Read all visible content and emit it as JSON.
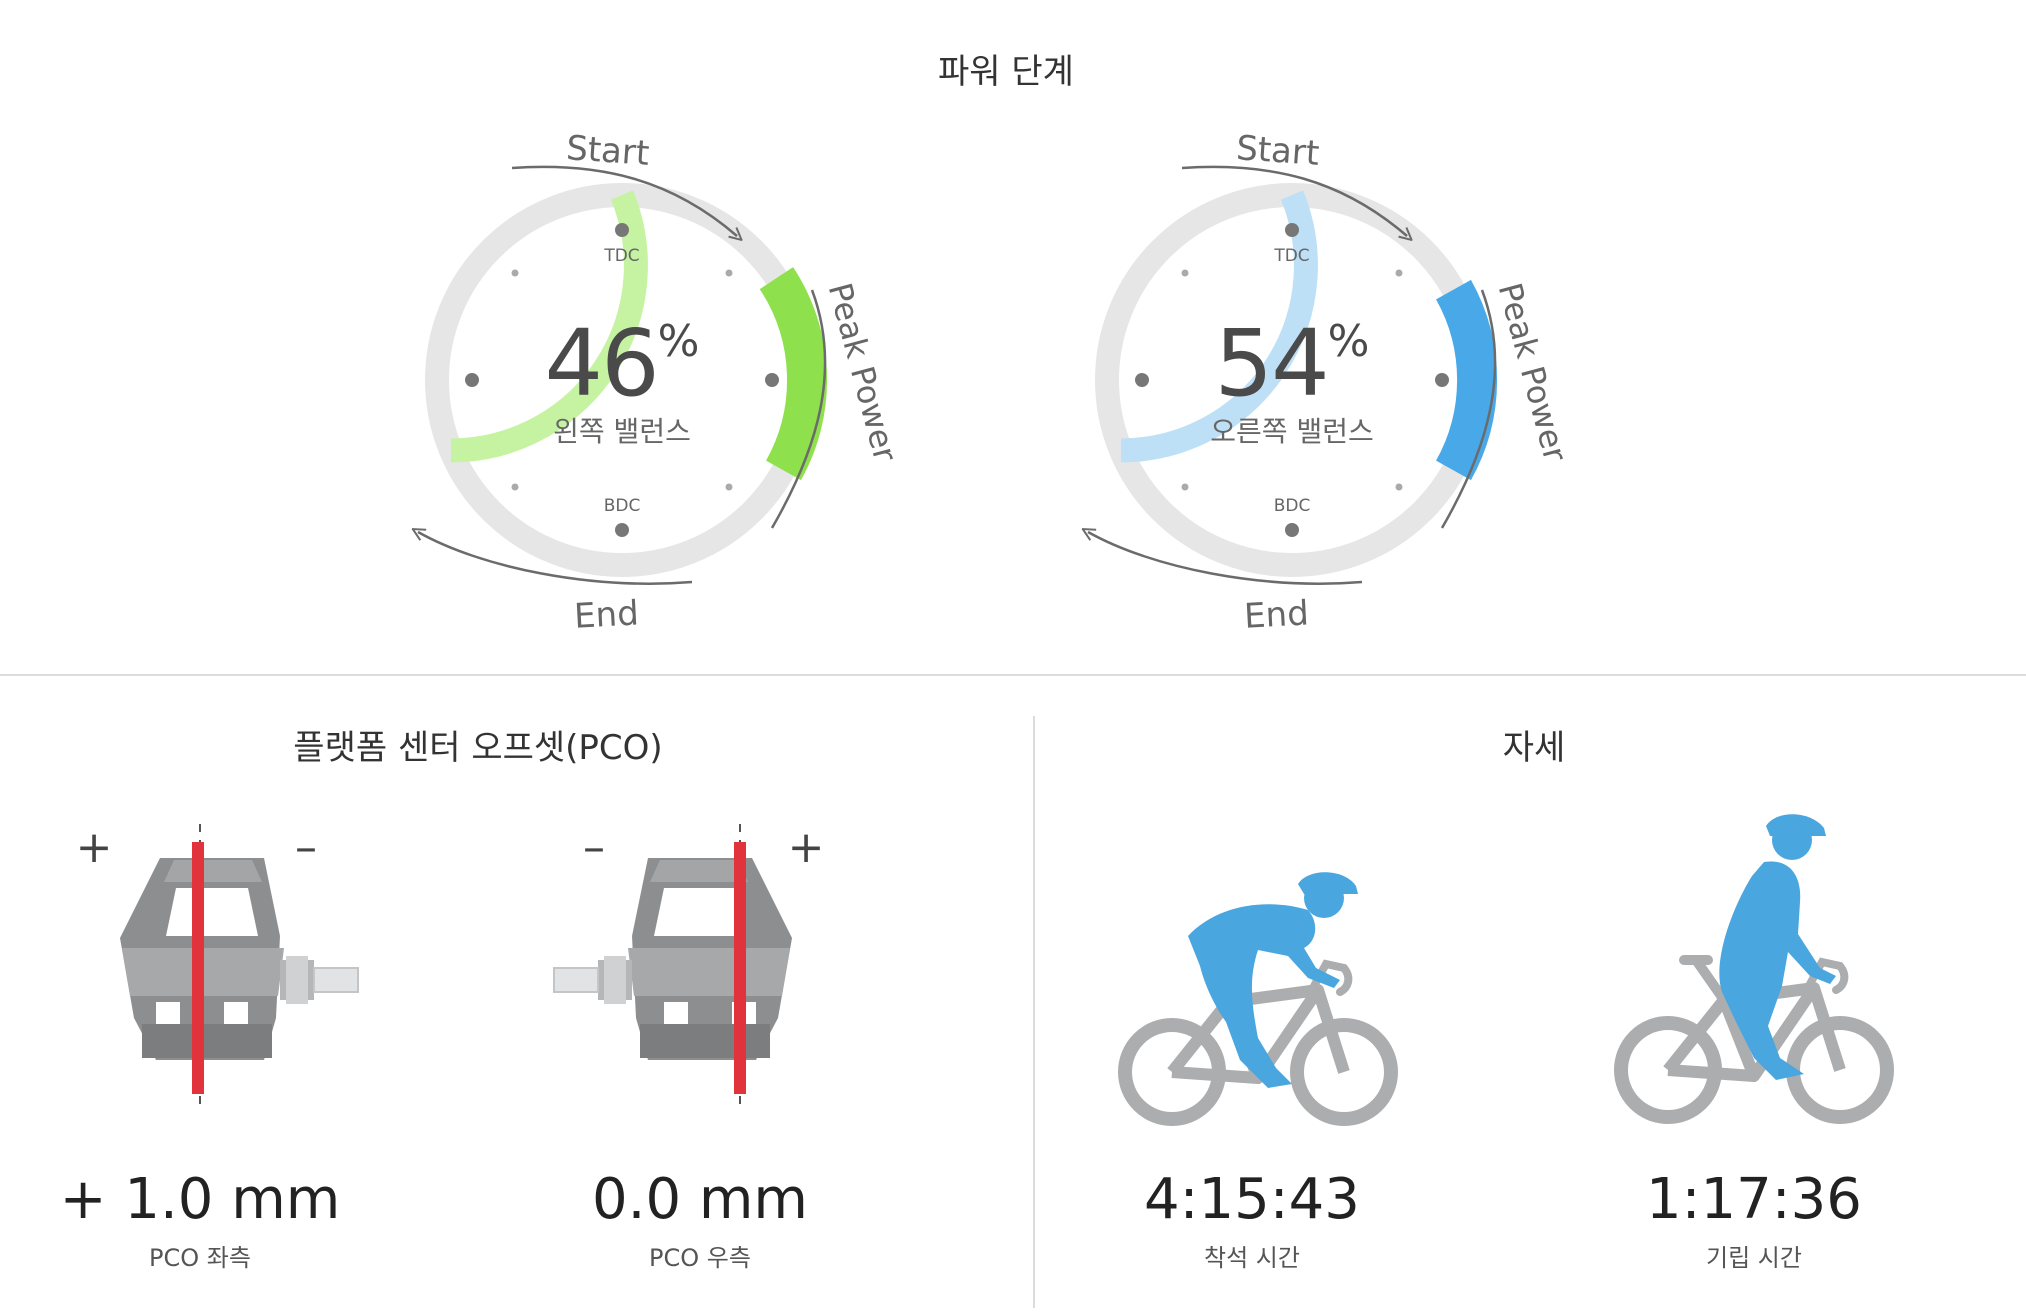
{
  "power_phase": {
    "title": "파워 단계",
    "left": {
      "percent": "46",
      "percent_sign": "%",
      "label": "왼쪽 밸런스",
      "tdc": "TDC",
      "bdc": "BDC",
      "start": "Start",
      "end": "End",
      "peak": "Peak Power",
      "colors": {
        "phase": "#c6f3a2",
        "peak": "#8ee04c"
      }
    },
    "right": {
      "percent": "54",
      "percent_sign": "%",
      "label": "오른쪽 밸런스",
      "tdc": "TDC",
      "bdc": "BDC",
      "start": "Start",
      "end": "End",
      "peak": "Peak Power",
      "colors": {
        "phase": "#bde0f6",
        "peak": "#49a9e8"
      }
    },
    "track_color": "#e6e6e6"
  },
  "pco": {
    "title": "플랫폼 센터 오프셋(PCO)",
    "left": {
      "value": "+ 1.0 mm",
      "label": "PCO 좌측",
      "plus": "+",
      "minus": "–"
    },
    "right": {
      "value": "0.0 mm",
      "label": "PCO 우측",
      "plus": "+",
      "minus": "–"
    },
    "line_color": "#e0333b"
  },
  "posture": {
    "title": "자세",
    "seated": {
      "value": "4:15:43",
      "label": "착석 시간"
    },
    "standing": {
      "value": "1:17:36",
      "label": "기립 시간"
    },
    "rider_color": "#4aa6df",
    "bike_color": "#acadaf"
  }
}
